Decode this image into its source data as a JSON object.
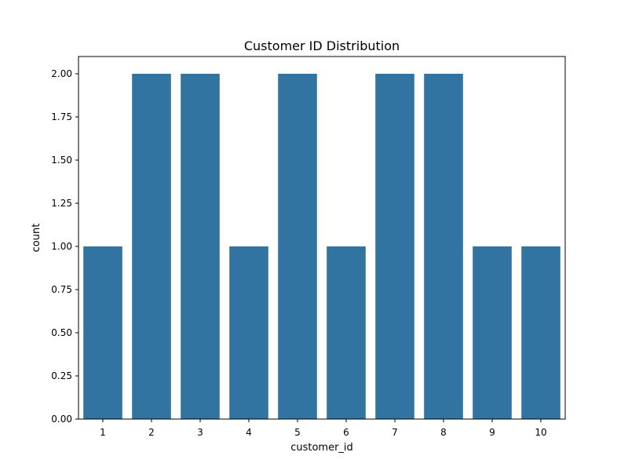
{
  "chart_data": {
    "type": "bar",
    "title": "Customer ID Distribution",
    "xlabel": "customer_id",
    "ylabel": "count",
    "categories": [
      "1",
      "2",
      "3",
      "4",
      "5",
      "6",
      "7",
      "8",
      "9",
      "10"
    ],
    "values": [
      1,
      2,
      2,
      1,
      2,
      1,
      2,
      2,
      1,
      1
    ],
    "ylim": [
      0,
      2.1
    ],
    "yticks": [
      "0.00",
      "0.25",
      "0.50",
      "0.75",
      "1.00",
      "1.25",
      "1.50",
      "1.75",
      "2.00"
    ],
    "grid": false,
    "bar_color": "#3274a1"
  }
}
